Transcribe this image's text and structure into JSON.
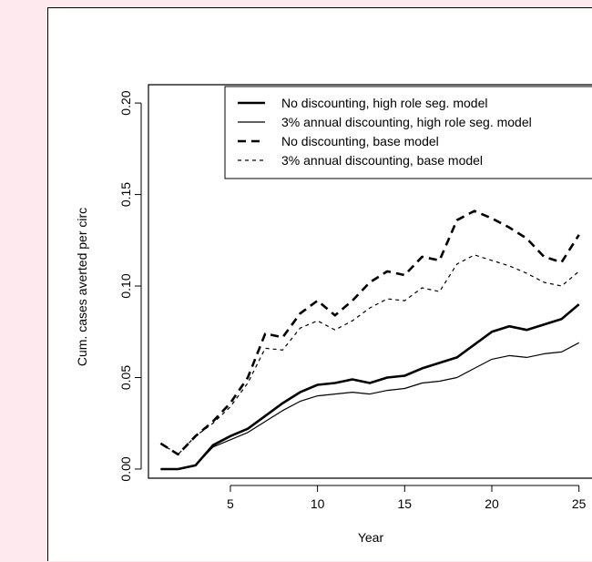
{
  "chart_data": {
    "type": "line",
    "title": "",
    "xlabel": "Year",
    "ylabel": "Cum. cases averted per circ",
    "xlim": [
      1,
      25
    ],
    "ylim": [
      0,
      0.2
    ],
    "x_ticks": [
      5,
      10,
      15,
      20,
      25
    ],
    "x_tick_labels": [
      "5",
      "10",
      "15",
      "20",
      "25"
    ],
    "y_ticks": [
      0,
      0.05,
      0.1,
      0.15,
      0.2
    ],
    "y_tick_labels": [
      "0.00",
      "0.05",
      "0.10",
      "0.15",
      "0.20"
    ],
    "grid": false,
    "legend_position": "top-right",
    "x": [
      1,
      2,
      3,
      4,
      5,
      6,
      7,
      8,
      9,
      10,
      11,
      12,
      13,
      14,
      15,
      16,
      17,
      18,
      19,
      20,
      21,
      22,
      23,
      24,
      25
    ],
    "series": [
      {
        "name": "No discounting, high role seg. model",
        "style": "thick-solid",
        "values": [
          0.0,
          0.0,
          0.002,
          0.013,
          0.018,
          0.022,
          0.029,
          0.036,
          0.042,
          0.046,
          0.047,
          0.049,
          0.047,
          0.05,
          0.051,
          0.055,
          0.058,
          0.061,
          0.068,
          0.075,
          0.078,
          0.076,
          0.079,
          0.082,
          0.09
        ]
      },
      {
        "name": "3% annual discounting, high role seg. model",
        "style": "thin-solid",
        "values": [
          0.0,
          0.0,
          0.002,
          0.012,
          0.016,
          0.02,
          0.026,
          0.032,
          0.037,
          0.04,
          0.041,
          0.042,
          0.041,
          0.043,
          0.044,
          0.047,
          0.048,
          0.05,
          0.055,
          0.06,
          0.062,
          0.061,
          0.063,
          0.064,
          0.069
        ]
      },
      {
        "name": "No discounting, base model",
        "style": "thick-dashed",
        "values": [
          0.014,
          0.008,
          0.018,
          0.026,
          0.036,
          0.05,
          0.074,
          0.072,
          0.085,
          0.092,
          0.084,
          0.092,
          0.102,
          0.108,
          0.106,
          0.116,
          0.114,
          0.136,
          0.141,
          0.137,
          0.132,
          0.126,
          0.116,
          0.113,
          0.128
        ]
      },
      {
        "name": "3% annual discounting, base model",
        "style": "thin-dotted",
        "values": [
          0.014,
          0.008,
          0.018,
          0.025,
          0.034,
          0.047,
          0.066,
          0.065,
          0.077,
          0.081,
          0.076,
          0.081,
          0.088,
          0.093,
          0.092,
          0.099,
          0.097,
          0.112,
          0.117,
          0.114,
          0.111,
          0.107,
          0.102,
          0.1,
          0.108
        ]
      }
    ]
  }
}
